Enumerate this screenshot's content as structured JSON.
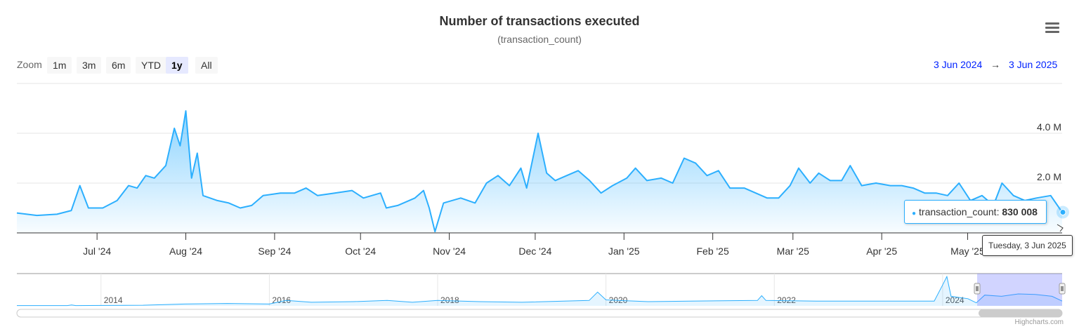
{
  "chart_data": {
    "type": "area",
    "title": "Number of transactions executed",
    "subtitle": "(transaction_count)",
    "series": [
      {
        "name": "transaction_count",
        "color": "#2caffe"
      }
    ],
    "x_range": [
      "2024-06-03",
      "2025-06-03"
    ],
    "y_range": [
      0,
      6000000
    ],
    "y_ticks": [
      {
        "value": 2000000,
        "label": "2.0 M"
      },
      {
        "value": 4000000,
        "label": "4.0 M"
      }
    ],
    "x_ticks": [
      {
        "date": "2024-07-01",
        "label": "Jul '24"
      },
      {
        "date": "2024-08-01",
        "label": "Aug '24"
      },
      {
        "date": "2024-09-01",
        "label": "Sep '24"
      },
      {
        "date": "2024-10-01",
        "label": "Oct '24"
      },
      {
        "date": "2024-11-01",
        "label": "Nov '24"
      },
      {
        "date": "2024-12-01",
        "label": "Dec '24"
      },
      {
        "date": "2025-01-01",
        "label": "Jan '25"
      },
      {
        "date": "2025-02-01",
        "label": "Feb '25"
      },
      {
        "date": "2025-03-01",
        "label": "Mar '25"
      },
      {
        "date": "2025-04-01",
        "label": "Apr '25"
      },
      {
        "date": "2025-05-01",
        "label": "May '25"
      }
    ],
    "grid": true,
    "points": [
      [
        "2024-06-03",
        0.8
      ],
      [
        "2024-06-10",
        0.7
      ],
      [
        "2024-06-17",
        0.75
      ],
      [
        "2024-06-22",
        0.9
      ],
      [
        "2024-06-25",
        1.9
      ],
      [
        "2024-06-28",
        1.0
      ],
      [
        "2024-07-03",
        1.0
      ],
      [
        "2024-07-08",
        1.3
      ],
      [
        "2024-07-12",
        1.9
      ],
      [
        "2024-07-15",
        1.8
      ],
      [
        "2024-07-18",
        2.3
      ],
      [
        "2024-07-21",
        2.2
      ],
      [
        "2024-07-25",
        2.7
      ],
      [
        "2024-07-28",
        4.2
      ],
      [
        "2024-07-30",
        3.5
      ],
      [
        "2024-08-01",
        4.9
      ],
      [
        "2024-08-03",
        2.2
      ],
      [
        "2024-08-05",
        3.2
      ],
      [
        "2024-08-07",
        1.5
      ],
      [
        "2024-08-12",
        1.3
      ],
      [
        "2024-08-16",
        1.2
      ],
      [
        "2024-08-20",
        1.0
      ],
      [
        "2024-08-24",
        1.1
      ],
      [
        "2024-08-28",
        1.5
      ],
      [
        "2024-09-03",
        1.6
      ],
      [
        "2024-09-08",
        1.6
      ],
      [
        "2024-09-12",
        1.8
      ],
      [
        "2024-09-16",
        1.5
      ],
      [
        "2024-09-22",
        1.6
      ],
      [
        "2024-09-28",
        1.7
      ],
      [
        "2024-10-02",
        1.4
      ],
      [
        "2024-10-08",
        1.6
      ],
      [
        "2024-10-10",
        1.0
      ],
      [
        "2024-10-14",
        1.1
      ],
      [
        "2024-10-20",
        1.4
      ],
      [
        "2024-10-23",
        1.7
      ],
      [
        "2024-10-25",
        1.0
      ],
      [
        "2024-10-27",
        0.05
      ],
      [
        "2024-10-30",
        1.2
      ],
      [
        "2024-11-05",
        1.4
      ],
      [
        "2024-11-10",
        1.2
      ],
      [
        "2024-11-14",
        2.0
      ],
      [
        "2024-11-18",
        2.3
      ],
      [
        "2024-11-22",
        1.9
      ],
      [
        "2024-11-26",
        2.6
      ],
      [
        "2024-11-28",
        1.8
      ],
      [
        "2024-12-02",
        4.0
      ],
      [
        "2024-12-05",
        2.4
      ],
      [
        "2024-12-08",
        2.1
      ],
      [
        "2024-12-12",
        2.3
      ],
      [
        "2024-12-16",
        2.5
      ],
      [
        "2024-12-20",
        2.1
      ],
      [
        "2024-12-24",
        1.6
      ],
      [
        "2024-12-28",
        1.9
      ],
      [
        "2025-01-02",
        2.2
      ],
      [
        "2025-01-05",
        2.6
      ],
      [
        "2025-01-09",
        2.1
      ],
      [
        "2025-01-14",
        2.2
      ],
      [
        "2025-01-18",
        2.0
      ],
      [
        "2025-01-22",
        3.0
      ],
      [
        "2025-01-26",
        2.8
      ],
      [
        "2025-01-30",
        2.3
      ],
      [
        "2025-02-03",
        2.5
      ],
      [
        "2025-02-07",
        1.8
      ],
      [
        "2025-02-12",
        1.8
      ],
      [
        "2025-02-16",
        1.6
      ],
      [
        "2025-02-20",
        1.4
      ],
      [
        "2025-02-24",
        1.4
      ],
      [
        "2025-02-28",
        1.9
      ],
      [
        "2025-03-03",
        2.6
      ],
      [
        "2025-03-07",
        2.0
      ],
      [
        "2025-03-10",
        2.4
      ],
      [
        "2025-03-14",
        2.1
      ],
      [
        "2025-03-18",
        2.1
      ],
      [
        "2025-03-21",
        2.7
      ],
      [
        "2025-03-25",
        1.9
      ],
      [
        "2025-03-30",
        2.0
      ],
      [
        "2025-04-04",
        1.9
      ],
      [
        "2025-04-08",
        1.9
      ],
      [
        "2025-04-12",
        1.8
      ],
      [
        "2025-04-16",
        1.6
      ],
      [
        "2025-04-20",
        1.6
      ],
      [
        "2025-04-24",
        1.5
      ],
      [
        "2025-04-28",
        2.0
      ],
      [
        "2025-05-02",
        1.3
      ],
      [
        "2025-05-06",
        1.5
      ],
      [
        "2025-05-10",
        1.1
      ],
      [
        "2025-05-13",
        2.0
      ],
      [
        "2025-05-17",
        1.5
      ],
      [
        "2025-05-21",
        1.3
      ],
      [
        "2025-05-25",
        1.4
      ],
      [
        "2025-05-30",
        1.5
      ],
      [
        "2025-06-03",
        0.83
      ]
    ],
    "y_unit": "M",
    "navigator": {
      "x_range": [
        2013.0,
        2025.42
      ],
      "ticks": [
        "2014",
        "2016",
        "2018",
        "2020",
        "2022",
        "2024"
      ],
      "selected": [
        "2024-06-03",
        "2025-06-03"
      ],
      "points": [
        [
          2013.0,
          0.05
        ],
        [
          2013.6,
          0.05
        ],
        [
          2013.65,
          0.15
        ],
        [
          2013.7,
          0.05
        ],
        [
          2014.5,
          0.1
        ],
        [
          2015.0,
          0.3
        ],
        [
          2015.5,
          0.4
        ],
        [
          2016.0,
          0.3
        ],
        [
          2016.2,
          0.9
        ],
        [
          2016.5,
          0.6
        ],
        [
          2017.0,
          0.7
        ],
        [
          2017.4,
          0.9
        ],
        [
          2017.7,
          0.6
        ],
        [
          2018.0,
          0.9
        ],
        [
          2018.5,
          0.7
        ],
        [
          2019.0,
          0.6
        ],
        [
          2019.8,
          0.9
        ],
        [
          2019.9,
          2.3
        ],
        [
          2020.0,
          1.0
        ],
        [
          2020.5,
          0.7
        ],
        [
          2021.0,
          0.8
        ],
        [
          2021.8,
          0.9
        ],
        [
          2021.85,
          1.7
        ],
        [
          2021.9,
          0.9
        ],
        [
          2022.5,
          0.8
        ],
        [
          2023.0,
          0.8
        ],
        [
          2023.9,
          0.8
        ],
        [
          2024.0,
          3.5
        ],
        [
          2024.05,
          4.9
        ],
        [
          2024.1,
          1.6
        ],
        [
          2024.3,
          1.2
        ],
        [
          2024.4,
          0.5
        ],
        [
          2024.5,
          1.8
        ],
        [
          2024.7,
          1.6
        ],
        [
          2024.9,
          2.0
        ],
        [
          2025.1,
          1.9
        ],
        [
          2025.3,
          1.6
        ],
        [
          2025.42,
          0.8
        ]
      ]
    }
  },
  "zoom": {
    "label": "Zoom",
    "buttons": [
      "1m",
      "3m",
      "6m",
      "YTD",
      "1y",
      "All"
    ],
    "selected": "1y"
  },
  "range": {
    "from": "3 Jun 2024",
    "arrow": "→",
    "to": "3 Jun 2025"
  },
  "tooltip": {
    "series": "transaction_count:",
    "value": "830 008",
    "date": "Tuesday, 3 Jun 2025"
  },
  "credits": "Highcharts.com",
  "menu_icon": "hamburger-menu-icon"
}
